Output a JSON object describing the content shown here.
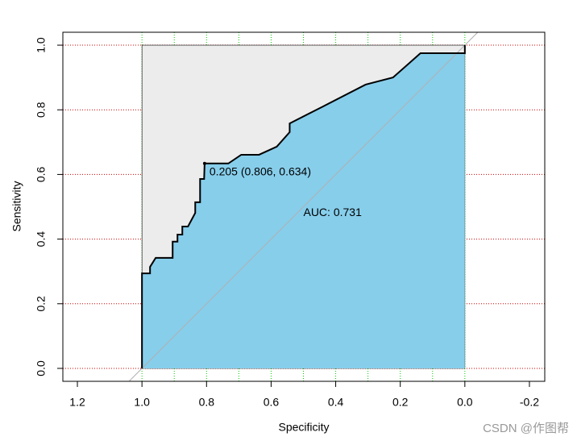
{
  "chart_data": {
    "type": "roc",
    "xlabel": "Specificity",
    "ylabel": "Sensitivity",
    "x": [
      1,
      1,
      0.975,
      0.975,
      0.9575,
      0.905,
      0.905,
      0.89,
      0.89,
      0.875,
      0.875,
      0.8575,
      0.835,
      0.835,
      0.82,
      0.82,
      0.8075,
      0.806,
      0.7325,
      0.6925,
      0.6375,
      0.5825,
      0.5425,
      0.5425,
      0.44,
      0.3075,
      0.2225,
      0.1375,
      0,
      0
    ],
    "series": [
      {
        "name": "ROC",
        "color": "#000000",
        "values": [
          0,
          0.294,
          0.294,
          0.314,
          0.342,
          0.342,
          0.392,
          0.392,
          0.414,
          0.414,
          0.439,
          0.439,
          0.481,
          0.514,
          0.514,
          0.586,
          0.586,
          0.634,
          0.634,
          0.661,
          0.661,
          0.686,
          0.731,
          0.758,
          0.81,
          0.878,
          0.9,
          0.975,
          0.975,
          1
        ]
      }
    ],
    "auc_fill": "#87ceeb",
    "max_fill": "#ececec",
    "diagonal_color": "#b0b0b0",
    "auc_label": "AUC: 0.731",
    "threshold": {
      "x": 0.806,
      "y": 0.634,
      "label": "0.205 (0.806, 0.634)"
    },
    "xlim": [
      1.245,
      -0.2475
    ],
    "ylim": [
      -0.04,
      1.04
    ],
    "xticks": [
      1.2,
      {
        "value": 1,
        "label": "1.0"
      },
      0.8,
      0.6,
      0.4,
      0.2,
      {
        "value": 0,
        "label": "0.0"
      },
      -0.2
    ],
    "yticks": [
      {
        "value": 0,
        "label": "0.0"
      },
      0.2,
      0.4,
      0.6,
      0.8,
      {
        "value": 1,
        "label": "1.0"
      }
    ],
    "hgrid_color": "#cc0000",
    "vgrid": [
      1,
      0.9,
      0.8,
      0.7,
      0.6,
      0.5,
      0.4,
      0.3,
      0.2,
      0.1,
      0
    ],
    "vgrid_color": "#00cc00",
    "watermark": "CSDN @作图帮"
  }
}
